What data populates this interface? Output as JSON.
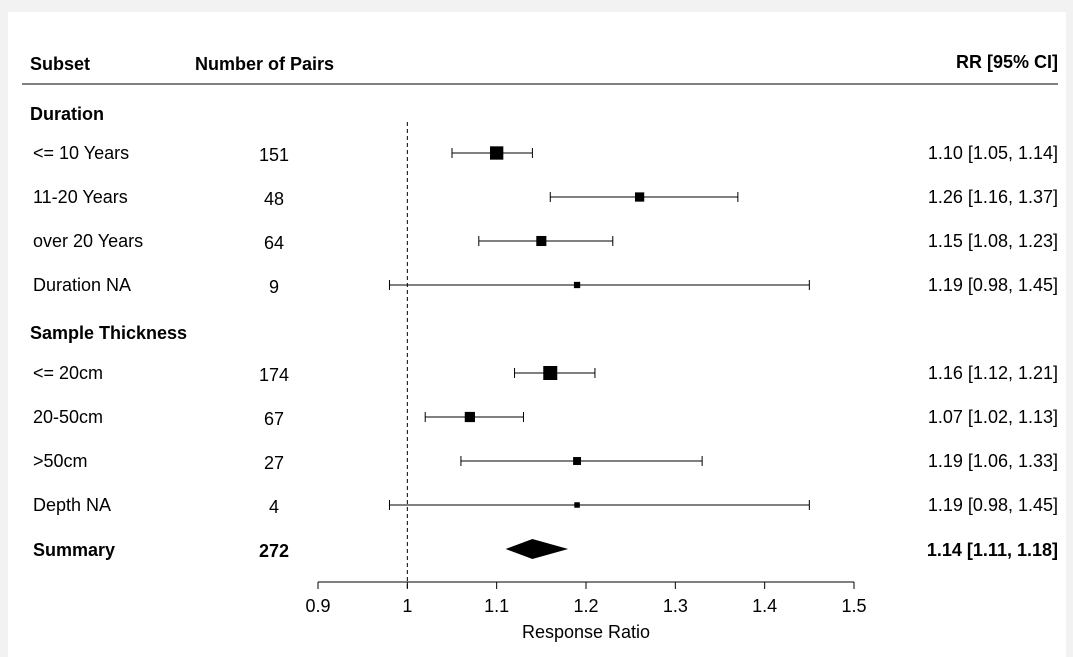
{
  "chart_data": {
    "type": "forest",
    "headers": {
      "subset": "Subset",
      "pairs": "Number of Pairs",
      "rr": "RR [95% CI]"
    },
    "groups": [
      {
        "name": "Duration",
        "rows": [
          {
            "label": "<= 10 Years",
            "n": "151",
            "est": 1.1,
            "lo": 1.05,
            "hi": 1.14,
            "ci_text": "1.10 [1.05, 1.14]",
            "weight": 151
          },
          {
            "label": "11-20 Years",
            "n": "48",
            "est": 1.26,
            "lo": 1.16,
            "hi": 1.37,
            "ci_text": "1.26 [1.16, 1.37]",
            "weight": 48
          },
          {
            "label": "over 20 Years",
            "n": "64",
            "est": 1.15,
            "lo": 1.08,
            "hi": 1.23,
            "ci_text": "1.15 [1.08, 1.23]",
            "weight": 64
          },
          {
            "label": "Duration NA",
            "n": "9",
            "est": 1.19,
            "lo": 0.98,
            "hi": 1.45,
            "ci_text": "1.19 [0.98, 1.45]",
            "weight": 9
          }
        ]
      },
      {
        "name": "Sample Thickness",
        "rows": [
          {
            "label": "<= 20cm",
            "n": "174",
            "est": 1.16,
            "lo": 1.12,
            "hi": 1.21,
            "ci_text": "1.16 [1.12, 1.21]",
            "weight": 174
          },
          {
            "label": "20-50cm",
            "n": "67",
            "est": 1.07,
            "lo": 1.02,
            "hi": 1.13,
            "ci_text": "1.07 [1.02, 1.13]",
            "weight": 67
          },
          {
            "label": ">50cm",
            "n": "27",
            "est": 1.19,
            "lo": 1.06,
            "hi": 1.33,
            "ci_text": "1.19 [1.06, 1.33]",
            "weight": 27
          },
          {
            "label": "Depth NA",
            "n": "4",
            "est": 1.19,
            "lo": 0.98,
            "hi": 1.45,
            "ci_text": "1.19 [0.98, 1.45]",
            "weight": 4
          }
        ]
      }
    ],
    "summary": {
      "label": "Summary",
      "n": "272",
      "est": 1.14,
      "lo": 1.11,
      "hi": 1.18,
      "ci_text": "1.14 [1.11, 1.18]"
    },
    "reference_line": 1,
    "xlim": [
      0.9,
      1.5
    ],
    "xticks": [
      0.9,
      1,
      1.1,
      1.2,
      1.3,
      1.4,
      1.5
    ],
    "xtick_labels": [
      "0.9",
      "1",
      "1.1",
      "1.2",
      "1.3",
      "1.4",
      "1.5"
    ],
    "xlabel": "Response Ratio"
  }
}
